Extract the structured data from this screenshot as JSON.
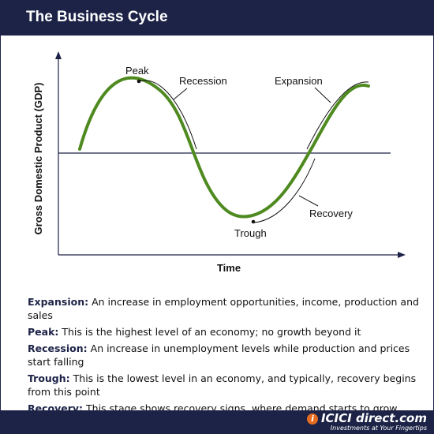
{
  "title": "The Business Cycle",
  "diagram": {
    "y_axis_label": "Gross Domestic Product (GDP)",
    "x_axis_label": "Time",
    "phases": {
      "peak": "Peak",
      "recession": "Recession",
      "trough": "Trough",
      "recovery": "Recovery",
      "expansion": "Expansion"
    }
  },
  "definitions": [
    {
      "term": "Expansion:",
      "text": "An increase in employment opportunities, income, production and sales"
    },
    {
      "term": "Peak:",
      "text": "This is the highest level of an economy; no growth beyond it"
    },
    {
      "term": "Recession:",
      "text": "An increase in unemployment levels while production and prices start falling"
    },
    {
      "term": "Trough:",
      "text": "This is the lowest level in an economy, and typically, recovery begins from this point"
    },
    {
      "term": "Recovery:",
      "text": "This stage shows recovery signs, where demand starts to grow"
    }
  ],
  "brand": {
    "logo_text": "ICICI direct.com",
    "tagline": "Investments at Your Fingertips"
  },
  "colors": {
    "header": "#1d2347",
    "curve": "#4e8a1f",
    "accent": "#e86c1f"
  }
}
